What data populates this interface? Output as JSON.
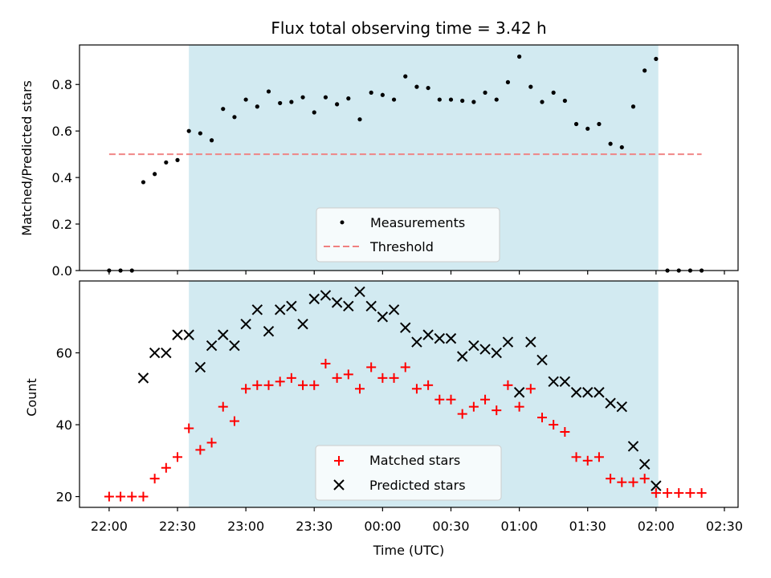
{
  "chart_data": {
    "type": "scatter",
    "title": "Flux total observing time = 3.42 h",
    "xlabel": "Time (UTC)",
    "x_ticks": [
      "22:00",
      "22:30",
      "23:00",
      "23:30",
      "00:00",
      "00:30",
      "01:00",
      "01:30",
      "02:00",
      "02:30"
    ],
    "x_tick_minutes": [
      0,
      30,
      60,
      90,
      120,
      150,
      180,
      210,
      240,
      270
    ],
    "xlim_minutes": [
      -13,
      276
    ],
    "shaded_region_minutes": [
      35,
      241
    ],
    "shade_color": "#add8e6",
    "x_minutes": [
      0,
      5,
      10,
      15,
      20,
      25,
      30,
      35,
      40,
      45,
      50,
      55,
      60,
      65,
      70,
      75,
      80,
      85,
      90,
      95,
      100,
      105,
      110,
      115,
      120,
      125,
      130,
      135,
      140,
      145,
      150,
      155,
      160,
      165,
      170,
      175,
      180,
      185,
      190,
      195,
      200,
      205,
      210,
      215,
      220,
      225,
      230,
      235,
      240,
      245,
      250,
      255,
      260
    ],
    "panels": [
      {
        "ylabel": "Matched/Predicted stars",
        "ylim": [
          0,
          0.97
        ],
        "y_ticks": [
          0.0,
          0.2,
          0.4,
          0.6,
          0.8
        ],
        "y_tick_labels": [
          "0.0",
          "0.2",
          "0.4",
          "0.6",
          "0.8"
        ],
        "legend": [
          {
            "label": "Measurements",
            "marker": "dot",
            "color": "#000000"
          },
          {
            "label": "Threshold",
            "marker": "dashed-line",
            "color": "#f08080"
          }
        ],
        "threshold": {
          "value": 0.5,
          "x_from": 0,
          "x_to": 260,
          "color": "#f08080"
        },
        "series": [
          {
            "name": "Measurements",
            "marker": "dot",
            "color": "#000000",
            "values": [
              0.0,
              0.0,
              0.0,
              0.38,
              0.415,
              0.465,
              0.475,
              0.6,
              0.59,
              0.56,
              0.695,
              0.66,
              0.735,
              0.705,
              0.77,
              0.72,
              0.725,
              0.745,
              0.68,
              0.745,
              0.715,
              0.74,
              0.65,
              0.765,
              0.755,
              0.735,
              0.835,
              0.79,
              0.785,
              0.735,
              0.735,
              0.73,
              0.725,
              0.765,
              0.735,
              0.81,
              0.92,
              0.79,
              0.725,
              0.765,
              0.73,
              0.63,
              0.61,
              0.63,
              0.545,
              0.53,
              0.705,
              0.86,
              0.91,
              0.0,
              0.0,
              0.0,
              0.0
            ]
          }
        ]
      },
      {
        "ylabel": "Count",
        "ylim": [
          17,
          80
        ],
        "y_ticks": [
          20,
          40,
          60
        ],
        "y_tick_labels": [
          "20",
          "40",
          "60"
        ],
        "legend": [
          {
            "label": "Matched stars",
            "marker": "plus",
            "color": "#ff0000"
          },
          {
            "label": "Predicted stars",
            "marker": "x",
            "color": "#000000"
          }
        ],
        "series": [
          {
            "name": "Matched stars",
            "marker": "plus",
            "color": "#ff0000",
            "values": [
              20,
              20,
              20,
              20,
              25,
              28,
              31,
              39,
              33,
              35,
              45,
              41,
              50,
              51,
              51,
              52,
              53,
              51,
              51,
              57,
              53,
              54,
              50,
              56,
              53,
              53,
              56,
              50,
              51,
              47,
              47,
              43,
              45,
              47,
              44,
              51,
              45,
              50,
              42,
              40,
              38,
              31,
              30,
              31,
              25,
              24,
              24,
              25,
              21,
              21,
              21,
              21,
              21
            ]
          },
          {
            "name": "Predicted stars",
            "marker": "x",
            "color": "#000000",
            "x_start_index": 3,
            "values": [
              53,
              60,
              60,
              65,
              65,
              56,
              62,
              65,
              62,
              68,
              72,
              66,
              72,
              73,
              68,
              75,
              76,
              74,
              73,
              77,
              73,
              70,
              72,
              67,
              63,
              65,
              64,
              64,
              59,
              62,
              61,
              60,
              63,
              49,
              63,
              58,
              52,
              52,
              49,
              49,
              49,
              46,
              45,
              34,
              29,
              23
            ]
          }
        ]
      }
    ]
  }
}
